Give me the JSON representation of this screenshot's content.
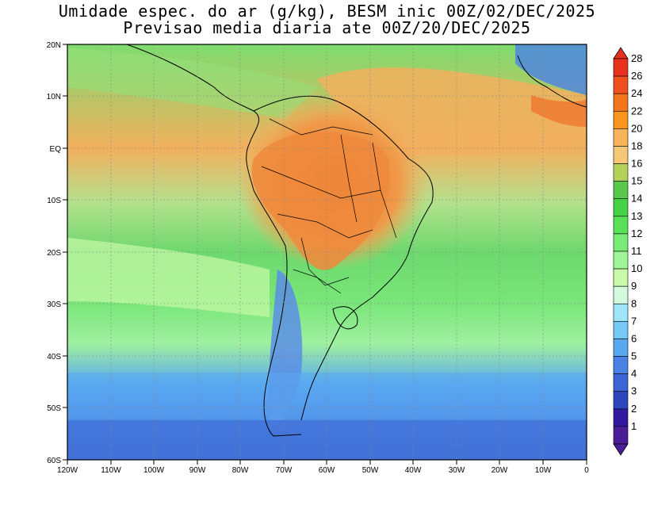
{
  "title": {
    "line1": "Umidade espec. do ar (g/kg), BESM inic 00Z/02/DEC/2025",
    "line2": "Previsao media diaria ate 00Z/20/DEC/2025"
  },
  "lat_labels": [
    "20N",
    "10N",
    "EQ",
    "10S",
    "20S",
    "30S",
    "40S",
    "50S",
    "60S"
  ],
  "lon_labels": [
    "120W",
    "110W",
    "100W",
    "90W",
    "80W",
    "70W",
    "60W",
    "50W",
    "40W",
    "30W",
    "20W",
    "10W",
    "0"
  ],
  "colorbar": {
    "levels": [
      "28",
      "26",
      "24",
      "22",
      "20",
      "18",
      "16",
      "15",
      "14",
      "13",
      "12",
      "11",
      "10",
      "9",
      "8",
      "7",
      "6",
      "5",
      "4",
      "3",
      "2",
      "1"
    ],
    "colors": {
      "top_arrow": "#e8321e",
      "bottom_arrow": "#4a1e96",
      "bands": [
        "#e8321e",
        "#f0501e",
        "#f5751e",
        "#f8961e",
        "#f8b45a",
        "#f5c878",
        "#b4d25a",
        "#5ac84b",
        "#46d246",
        "#5ae15a",
        "#78eb78",
        "#a0f596",
        "#c8faa8",
        "#d2fadc",
        "#a0e6fa",
        "#78c8f5",
        "#5aa8f0",
        "#4b82e6",
        "#3c64d2",
        "#2d46be",
        "#3219a0",
        "#4a1e96"
      ]
    }
  },
  "legend_gradient": {
    "ocean_tropical": "#7ddc6e",
    "continent_hot": "#f2a34a",
    "amazon_core": "#ec7a32",
    "south_cold": "#5a96e6",
    "far_south": "#3c64d2"
  }
}
